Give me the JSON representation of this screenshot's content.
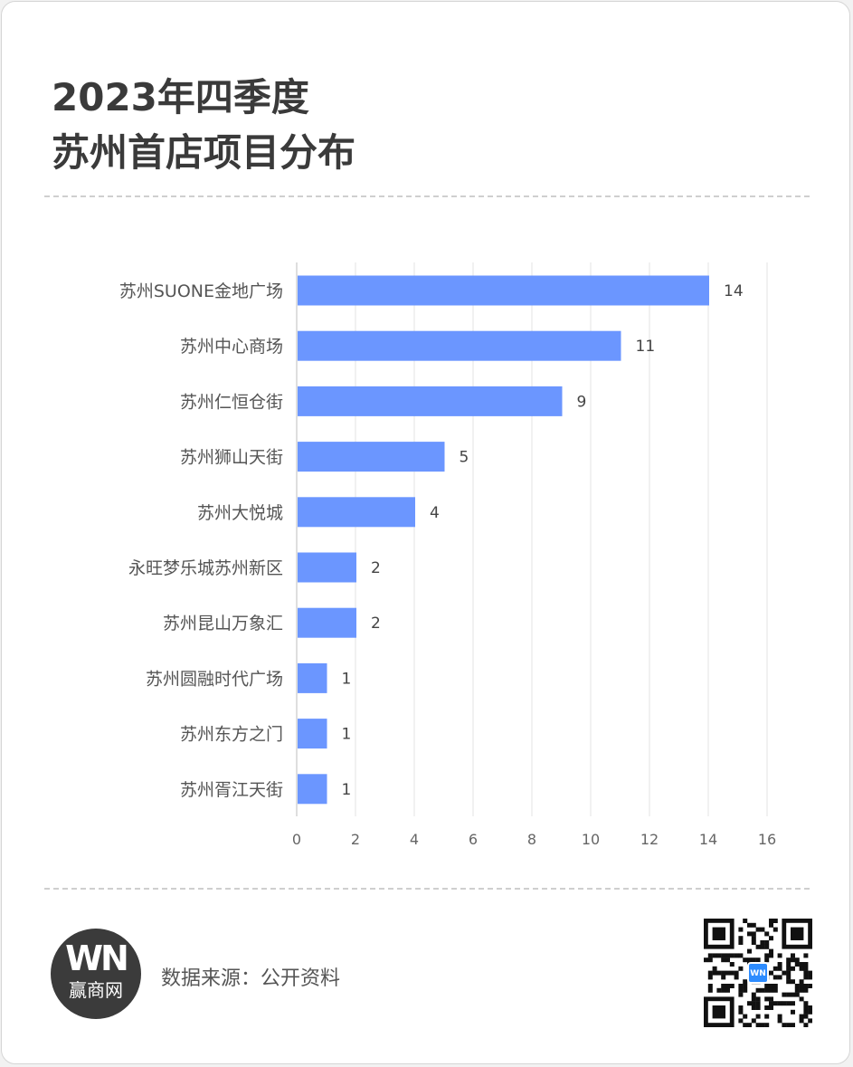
{
  "header": {
    "title_line1": "2023年四季度",
    "title_line2": "苏州首店项目分布"
  },
  "chart_data": {
    "type": "bar",
    "orientation": "horizontal",
    "categories": [
      "苏州SUONE金地广场",
      "苏州中心商场",
      "苏州仁恒仓街",
      "苏州狮山天街",
      "苏州大悦城",
      "永旺梦乐城苏州新区",
      "苏州昆山万象汇",
      "苏州圆融时代广场",
      "苏州东方之门",
      "苏州胥江天街"
    ],
    "values": [
      14,
      11,
      9,
      5,
      4,
      2,
      2,
      1,
      1,
      1
    ],
    "xlim": [
      0,
      16
    ],
    "xticks": [
      0,
      2,
      4,
      6,
      8,
      10,
      12,
      14,
      16
    ],
    "grid": true,
    "bar_color": "#6b96ff",
    "title": "",
    "xlabel": "",
    "ylabel": ""
  },
  "footer": {
    "logo_mark": "WN",
    "logo_name": "赢商网",
    "source": "数据来源：公开资料",
    "qr_mark": "WN"
  }
}
